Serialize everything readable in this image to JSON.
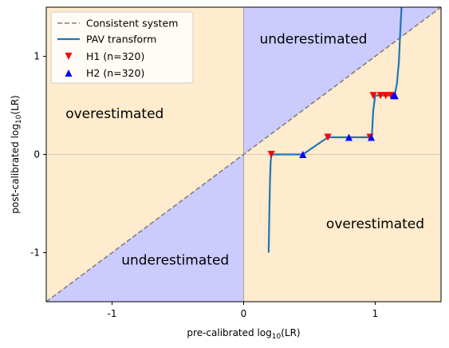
{
  "chart_data": {
    "type": "line",
    "xlabel": "pre-calibrated log10(LR)",
    "ylabel": "post-calibrated log10(LR)",
    "xlim": [
      -1.5,
      1.5
    ],
    "ylim": [
      -1.5,
      1.5
    ],
    "x_ticks": [
      -1,
      0,
      1
    ],
    "y_ticks": [
      -1,
      0,
      1
    ],
    "x_tick_labels": [
      "-1",
      "0",
      "1"
    ],
    "y_tick_labels": [
      "-1",
      "0",
      "1"
    ],
    "grid": false,
    "legend_position": "top-left",
    "colors": {
      "overestimated_region": "#ffebcd",
      "underestimated_region": "#cccbfe",
      "consistent_line": "#808080",
      "pav_line": "#1f77b4",
      "h1_marker": "#ff0000",
      "h2_marker": "#0000ff",
      "zero_line": "#808080"
    },
    "regions": [
      {
        "label": "underestimated",
        "x": 0.53,
        "y": 1.17
      },
      {
        "label": "overestimated",
        "x": -0.98,
        "y": 0.41
      },
      {
        "label": "overestimated",
        "x": 1.0,
        "y": -0.71
      },
      {
        "label": "underestimated",
        "x": -0.52,
        "y": -1.08
      }
    ],
    "series": [
      {
        "name": "Consistent system",
        "style": "dashed",
        "x": [
          -1.5,
          1.5
        ],
        "y": [
          -1.5,
          1.5
        ]
      },
      {
        "name": "PAV transform",
        "style": "solid",
        "x": [
          0.19,
          0.195,
          0.2,
          0.205,
          0.21,
          0.215,
          0.22,
          0.45,
          0.64,
          0.96,
          0.975,
          0.985,
          1.0,
          1.14,
          1.15,
          1.165,
          1.18,
          1.19,
          1.2
        ],
        "y": [
          -1.0,
          -0.62,
          -0.28,
          -0.08,
          -0.01,
          0.0,
          0.0,
          0.0,
          0.175,
          0.175,
          0.2,
          0.45,
          0.6,
          0.6,
          0.62,
          0.72,
          0.95,
          1.25,
          1.5
        ]
      },
      {
        "name": "H1 (n=320)",
        "style": "marker-down",
        "x": [
          0.21,
          0.64,
          0.96,
          0.985,
          1.04,
          1.08,
          1.12
        ],
        "y": [
          0.0,
          0.175,
          0.175,
          0.6,
          0.6,
          0.6,
          0.6
        ]
      },
      {
        "name": "H2 (n=320)",
        "style": "marker-up",
        "x": [
          0.45,
          0.8,
          0.97,
          1.14,
          1.15
        ],
        "y": [
          0.0,
          0.175,
          0.175,
          0.6,
          0.6
        ]
      }
    ]
  }
}
